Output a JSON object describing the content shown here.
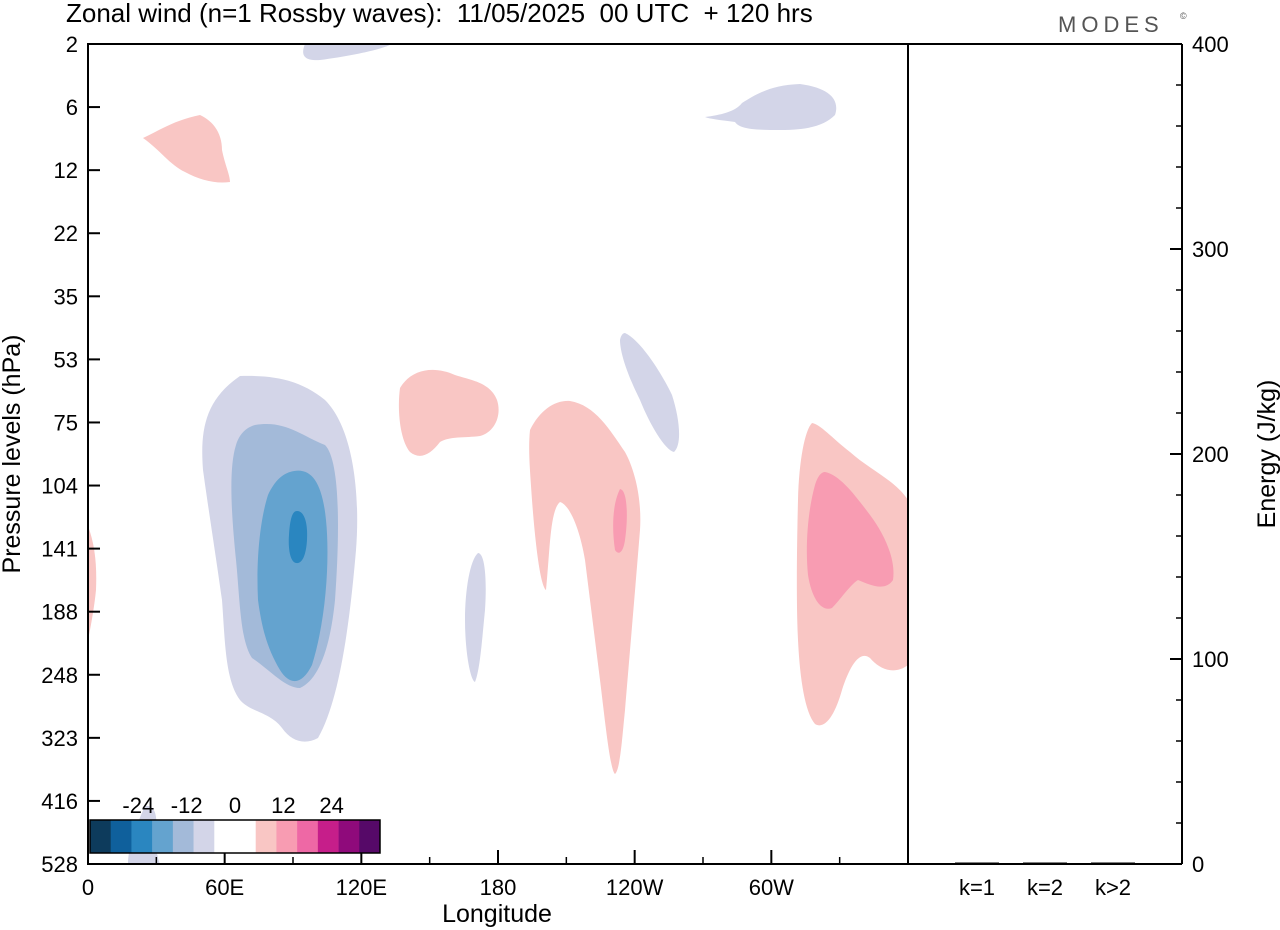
{
  "header": {
    "title": "Zonal wind (n=1 Rossby waves):  11/05/2025  00 UTC  + 120 hrs",
    "brand": "MODES",
    "brand_mark": "©"
  },
  "chart_data": [
    {
      "type": "contour",
      "title": "Zonal wind (n=1 Rossby waves):  11/05/2025  00 UTC  + 120 hrs",
      "xlabel": "Longitude",
      "ylabel": "Pressure levels (hPa)",
      "x_ticks": [
        "0",
        "60E",
        "120E",
        "180",
        "120W",
        "60W"
      ],
      "x_tick_values": [
        0,
        60,
        120,
        180,
        240,
        300
      ],
      "xlim": [
        0,
        360
      ],
      "y_ticks": [
        "2",
        "6",
        "12",
        "22",
        "35",
        "53",
        "75",
        "104",
        "141",
        "188",
        "248",
        "323",
        "416",
        "528"
      ],
      "colorbar": {
        "tick_labels": [
          "-24",
          "-12",
          "0",
          "12",
          "24"
        ],
        "tick_values": [
          -24,
          -12,
          0,
          12,
          24
        ],
        "colors": [
          "#0d3b5c",
          "#0f609c",
          "#2a86c0",
          "#64a3cf",
          "#a3bad9",
          "#d3d5e8",
          "#ffffff",
          "#ffffff",
          "#f9c6c4",
          "#f89cb2",
          "#ee68a5",
          "#c61e8a",
          "#8f0a7b",
          "#560968"
        ]
      },
      "features": [
        {
          "name": "negative-anomaly-asia",
          "longitude_center": 92,
          "pressure_center": 141,
          "min_level": -18
        },
        {
          "name": "positive-anomaly-dateline",
          "longitude_center": 232,
          "pressure_center": 130,
          "max_level": 9
        },
        {
          "name": "positive-anomaly-west",
          "longitude_center": 330,
          "pressure_center": 141,
          "max_level": 9
        }
      ]
    },
    {
      "type": "bar",
      "categories": [
        "k=1",
        "k=2",
        "k>2"
      ],
      "values": [
        0.3,
        0.6,
        0.4
      ],
      "ylabel": "Energy (J/kg)",
      "ylim": [
        0,
        400
      ],
      "y_ticks": [
        "0",
        "100",
        "200",
        "300",
        "400"
      ],
      "y_tick_values": [
        0,
        100,
        200,
        300,
        400
      ]
    }
  ]
}
